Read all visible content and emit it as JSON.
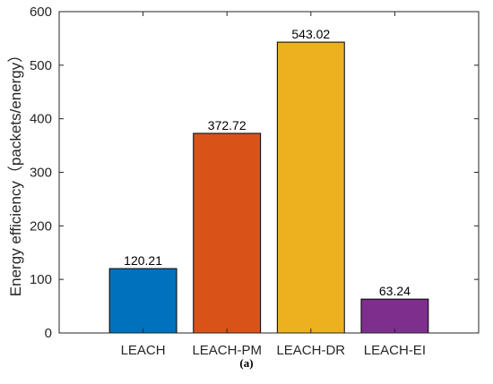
{
  "chart_data": {
    "type": "bar",
    "title": "",
    "xlabel": "",
    "ylabel": "Energy efficiency（packets/energy）",
    "categories": [
      "LEACH",
      "LEACH-PM",
      "LEACH-DR",
      "LEACH-EI"
    ],
    "values": [
      120.21,
      372.72,
      543.02,
      63.24
    ],
    "value_labels": [
      "120.21",
      "372.72",
      "543.02",
      "63.24"
    ],
    "colors": [
      "#0072BD",
      "#D95319",
      "#EDB120",
      "#7E2F8E"
    ],
    "ylim": [
      0,
      600
    ],
    "yticks": [
      0,
      100,
      200,
      300,
      400,
      500,
      600
    ],
    "grid": false
  },
  "caption": "(a)"
}
